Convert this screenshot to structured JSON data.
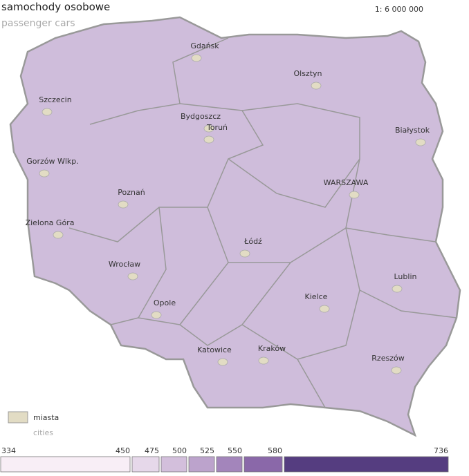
{
  "header": {
    "title": "samochody osobowe",
    "subtitle": "passenger cars",
    "scale": "1: 6 000 000"
  },
  "cities": [
    "Gdańsk",
    "Olsztyn",
    "Szczecin",
    "Bydgoszcz",
    "Toruń",
    "Białystok",
    "Gorzów Wlkp.",
    "WARSZAWA",
    "Poznań",
    "Zielona Góra",
    "Łódź",
    "Wrocław",
    "Lublin",
    "Kielce",
    "Opole",
    "Katowice",
    "Kraków",
    "Rzeszów"
  ],
  "legend_cities": {
    "label": "miasta",
    "sublabel": "cities"
  },
  "legend": {
    "breaks": [
      334,
      450,
      475,
      500,
      525,
      550,
      580,
      736
    ],
    "colors": [
      "#f8eef6",
      "#e6d8ea",
      "#d3bfdc",
      "#bca3cc",
      "#a385bb",
      "#8a68a9",
      "#553d80"
    ]
  }
}
